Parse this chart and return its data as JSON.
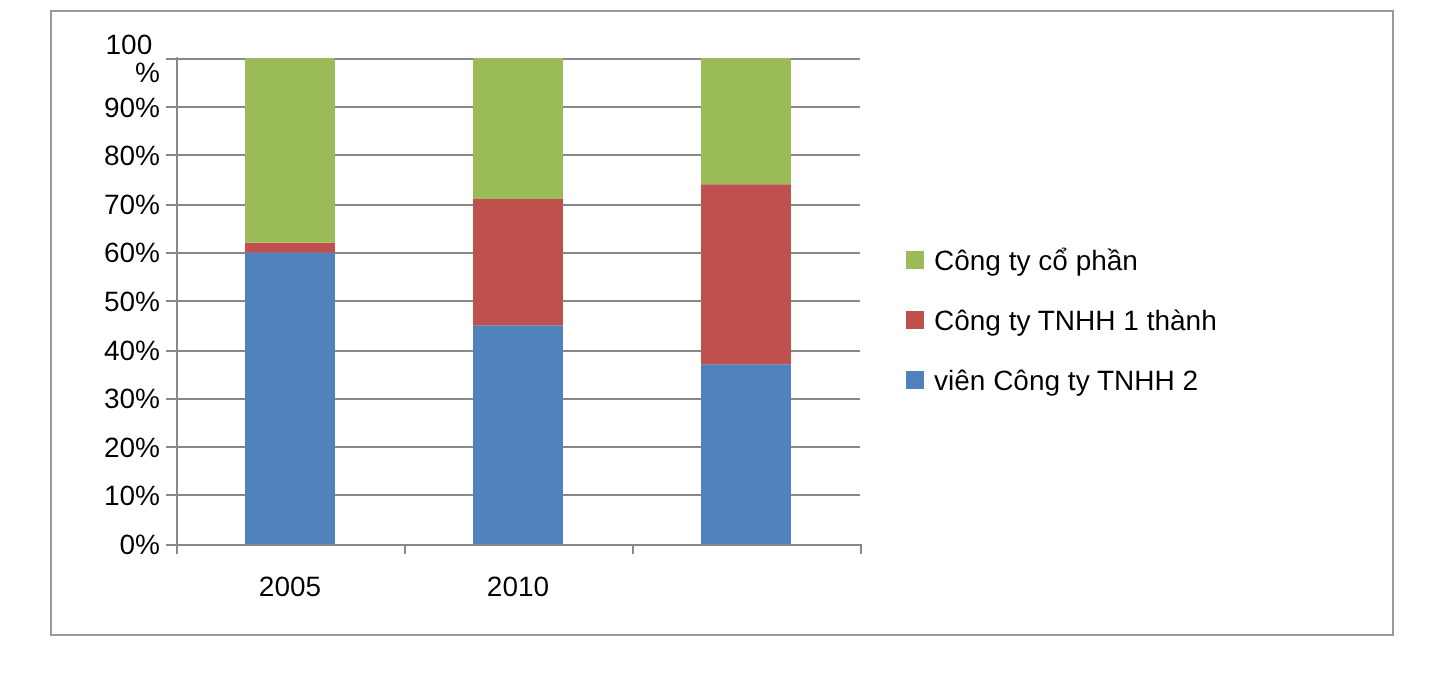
{
  "chart_data": {
    "type": "bar",
    "stacked": true,
    "categories": [
      "2005",
      "2010",
      null
    ],
    "series": [
      {
        "name": "viên Công ty TNHH 2",
        "color": "#4f81bd",
        "values": [
          60,
          45,
          37
        ]
      },
      {
        "name": "Công ty TNHH 1 thành",
        "color": "#c0504d",
        "values": [
          2,
          26,
          37
        ]
      },
      {
        "name": "Công ty cổ phần",
        "color": "#9bbb59",
        "values": [
          38,
          29,
          26
        ]
      }
    ],
    "ylim": [
      0,
      100
    ],
    "yticks": [
      {
        "value": 0,
        "label": "0%"
      },
      {
        "value": 10,
        "label": "10%"
      },
      {
        "value": 20,
        "label": "20%"
      },
      {
        "value": 30,
        "label": "30%"
      },
      {
        "value": 40,
        "label": "40%"
      },
      {
        "value": 50,
        "label": "50%"
      },
      {
        "value": 60,
        "label": "60%"
      },
      {
        "value": 70,
        "label": "70%"
      },
      {
        "value": 80,
        "label": "80%"
      },
      {
        "value": 90,
        "label": "90%"
      },
      {
        "value": 100,
        "label": "100 %"
      }
    ],
    "grid": "y",
    "legend": "right"
  }
}
